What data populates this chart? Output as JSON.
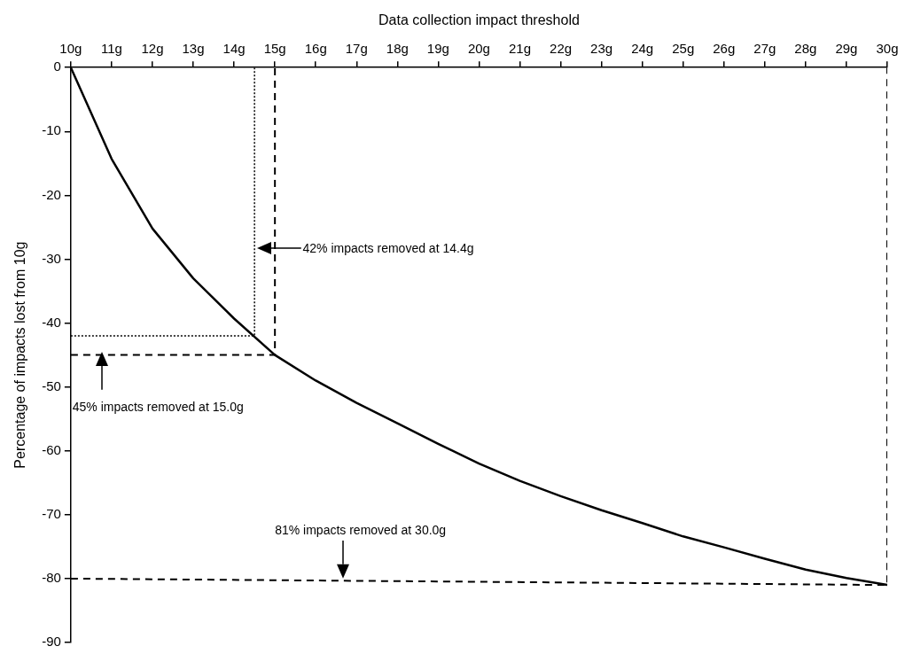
{
  "chart_data": {
    "type": "line",
    "xlabel": "Data collection impact threshold",
    "ylabel": "Percentage of impacts lost from 10g",
    "xlim": [
      10,
      30
    ],
    "xticks": [
      {
        "value": 10,
        "label": "10g"
      },
      {
        "value": 11,
        "label": "11g"
      },
      {
        "value": 12,
        "label": "12g"
      },
      {
        "value": 13,
        "label": "13g"
      },
      {
        "value": 14,
        "label": "14g"
      },
      {
        "value": 15,
        "label": "15g"
      },
      {
        "value": 16,
        "label": "16g"
      },
      {
        "value": 17,
        "label": "17g"
      },
      {
        "value": 18,
        "label": "18g"
      },
      {
        "value": 19,
        "label": "19g"
      },
      {
        "value": 20,
        "label": "20g"
      },
      {
        "value": 21,
        "label": "21g"
      },
      {
        "value": 22,
        "label": "22g"
      },
      {
        "value": 23,
        "label": "23g"
      },
      {
        "value": 24,
        "label": "24g"
      },
      {
        "value": 25,
        "label": "25g"
      },
      {
        "value": 26,
        "label": "26g"
      },
      {
        "value": 27,
        "label": "27g"
      },
      {
        "value": 28,
        "label": "28g"
      },
      {
        "value": 29,
        "label": "29g"
      },
      {
        "value": 30,
        "label": "30g"
      }
    ],
    "ylim": [
      -90,
      0
    ],
    "yticks": [
      0,
      -10,
      -20,
      -30,
      -40,
      -50,
      -60,
      -70,
      -80,
      -90
    ],
    "grid": false,
    "legend": false,
    "marker": "none",
    "x": [
      10,
      11,
      12,
      13,
      14,
      15,
      16,
      17,
      18,
      19,
      20,
      21,
      22,
      23,
      24,
      25,
      26,
      27,
      28,
      29,
      30
    ],
    "series": [
      {
        "color": "#000000",
        "line_style": "solid",
        "values": [
          0,
          -14.3,
          -25.2,
          -33,
          -39.3,
          -45,
          -49,
          -52.5,
          -55.7,
          -58.9,
          -62,
          -64.7,
          -67.1,
          -69.3,
          -71.3,
          -73.4,
          -75.1,
          -76.9,
          -78.6,
          -79.9,
          -81
        ]
      },
      {
        "color": "#000000",
        "line_style": "dotted",
        "x": [
          10,
          14.5,
          14.5
        ],
        "values": [
          -42,
          -42,
          0
        ]
      },
      {
        "color": "#000000",
        "line_style": "dashed",
        "x": [
          10,
          15,
          15
        ],
        "values": [
          -45,
          -45,
          0
        ]
      },
      {
        "color": "#000000",
        "line_style": "dashed",
        "x": [
          10,
          30,
          30
        ],
        "values": [
          -80,
          -81,
          0
        ]
      }
    ],
    "annotations": [
      "42% impacts removed at 14.4g",
      "45% impacts removed at 15.0g",
      "81% impacts removed at 30.0g"
    ]
  }
}
